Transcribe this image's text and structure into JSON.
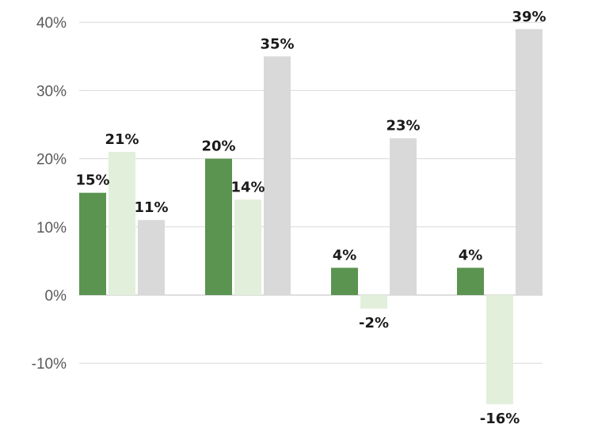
{
  "chart_data": {
    "type": "bar",
    "title": "",
    "xlabel": "",
    "ylabel": "",
    "ylim": [
      -16,
      40
    ],
    "yticks": [
      -10,
      0,
      10,
      20,
      30,
      40
    ],
    "ytick_labels": [
      "-10%",
      "0%",
      "10%",
      "20%",
      "30%",
      "40%"
    ],
    "grid": true,
    "legend": "none",
    "categories": [
      "",
      "",
      "",
      ""
    ],
    "series": [
      {
        "color": "#5a9450",
        "values": [
          15,
          20,
          4,
          4
        ],
        "labels": [
          "15%",
          "20%",
          "4%",
          "4%"
        ]
      },
      {
        "color": "#e2efda",
        "values": [
          21,
          14,
          -2,
          -16
        ],
        "labels": [
          "21%",
          "14%",
          "-2%",
          "-16%"
        ]
      },
      {
        "color": "#d9d9d9",
        "values": [
          11,
          35,
          23,
          39
        ],
        "labels": [
          "11%",
          "35%",
          "23%",
          "39%"
        ]
      }
    ]
  }
}
